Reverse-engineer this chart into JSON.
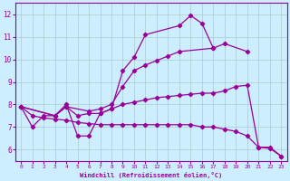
{
  "xlabel": "Windchill (Refroidissement éolien,°C)",
  "background_color": "#cceeff",
  "line_color": "#990099",
  "grid_color": "#aacccc",
  "xlim": [
    -0.5,
    23.5
  ],
  "ylim": [
    5.5,
    12.5
  ],
  "xticks": [
    0,
    1,
    2,
    3,
    4,
    5,
    6,
    7,
    8,
    9,
    10,
    11,
    12,
    13,
    14,
    15,
    16,
    17,
    18,
    19,
    20,
    21,
    22,
    23
  ],
  "yticks": [
    6,
    7,
    8,
    9,
    10,
    11,
    12
  ],
  "line1_x": [
    0,
    1,
    2,
    3,
    4,
    5,
    6,
    7,
    8,
    9,
    10,
    11,
    14,
    15,
    16,
    17
  ],
  "line1_y": [
    7.9,
    7.0,
    7.5,
    7.5,
    8.0,
    6.6,
    6.6,
    7.6,
    7.8,
    9.5,
    10.1,
    11.1,
    11.5,
    11.95,
    11.6,
    10.5
  ],
  "line2_x": [
    0,
    3,
    4,
    6,
    7,
    8,
    9,
    10,
    11,
    12,
    13,
    14,
    17,
    18,
    20
  ],
  "line2_y": [
    7.9,
    7.5,
    7.9,
    7.7,
    7.8,
    8.0,
    8.8,
    9.5,
    9.75,
    9.95,
    10.15,
    10.35,
    10.5,
    10.7,
    10.35
  ],
  "line3_x": [
    0,
    3,
    4,
    5,
    6,
    7,
    8,
    9,
    10,
    11,
    12,
    13,
    14,
    15,
    16,
    17,
    18,
    19,
    20,
    21,
    22,
    23
  ],
  "line3_y": [
    7.9,
    7.5,
    7.9,
    7.5,
    7.6,
    7.6,
    7.8,
    8.0,
    8.1,
    8.2,
    8.3,
    8.35,
    8.4,
    8.45,
    8.5,
    8.5,
    8.6,
    8.8,
    8.85,
    6.1,
    6.1,
    5.7
  ],
  "line4_x": [
    0,
    1,
    2,
    3,
    4,
    5,
    6,
    7,
    8,
    9,
    10,
    11,
    12,
    13,
    14,
    15,
    16,
    17,
    18,
    19,
    20,
    21,
    22,
    23
  ],
  "line4_y": [
    7.9,
    7.5,
    7.4,
    7.35,
    7.3,
    7.2,
    7.15,
    7.1,
    7.1,
    7.1,
    7.1,
    7.1,
    7.1,
    7.1,
    7.1,
    7.1,
    7.0,
    7.0,
    6.9,
    6.8,
    6.6,
    6.1,
    6.05,
    5.7
  ]
}
